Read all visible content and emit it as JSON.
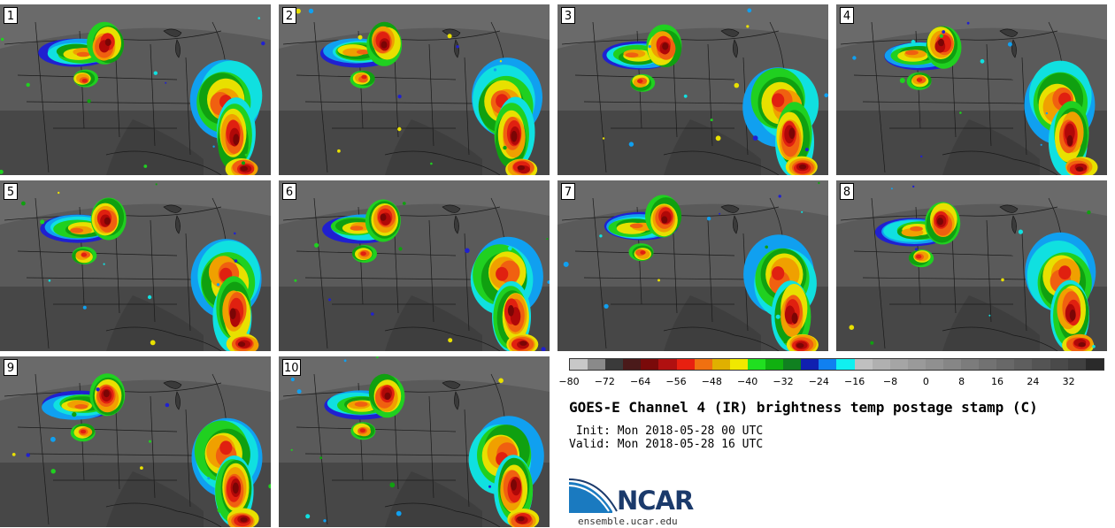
{
  "panels": [
    {
      "label": "1"
    },
    {
      "label": "2"
    },
    {
      "label": "3"
    },
    {
      "label": "4"
    },
    {
      "label": "5"
    },
    {
      "label": "6"
    },
    {
      "label": "7"
    },
    {
      "label": "8"
    },
    {
      "label": "9"
    },
    {
      "label": "10"
    }
  ],
  "colorbar": {
    "ticks": [
      "−80",
      "−72",
      "−64",
      "−56",
      "−48",
      "−40",
      "−32",
      "−24",
      "−16",
      "−8",
      "0",
      "8",
      "16",
      "24",
      "32"
    ],
    "tick_values": [
      -80,
      -72,
      -64,
      -56,
      -48,
      -40,
      -32,
      -24,
      -16,
      -8,
      0,
      8,
      16,
      24,
      32
    ],
    "range": [
      -80,
      40
    ],
    "colors": [
      "#c8c8c8",
      "#8a8a8a",
      "#3a3a3a",
      "#4a1a1a",
      "#7a0a0a",
      "#b01010",
      "#e82010",
      "#f07010",
      "#e0b000",
      "#f0e800",
      "#20e020",
      "#10b010",
      "#108020",
      "#1020b0",
      "#1080f0",
      "#10f0f0",
      "#c0c0c0",
      "#b0b0b0",
      "#a5a5a5",
      "#9a9a9a",
      "#909090",
      "#868686",
      "#7c7c7c",
      "#727272",
      "#686868",
      "#5e5e5e",
      "#545454",
      "#4a4a4a",
      "#404040",
      "#2a2a2a"
    ]
  },
  "title": "GOES-E Channel 4 (IR) brightness temp postage stamp (C)",
  "init": " Init: Mon 2018-05-28 00 UTC",
  "valid": "Valid: Mon 2018-05-28 16 UTC",
  "logo": {
    "text": "NCAR",
    "url": "ensemble.ucar.edu",
    "color": "#1b3a6b",
    "swoosh_color": "#1a7ac0"
  }
}
